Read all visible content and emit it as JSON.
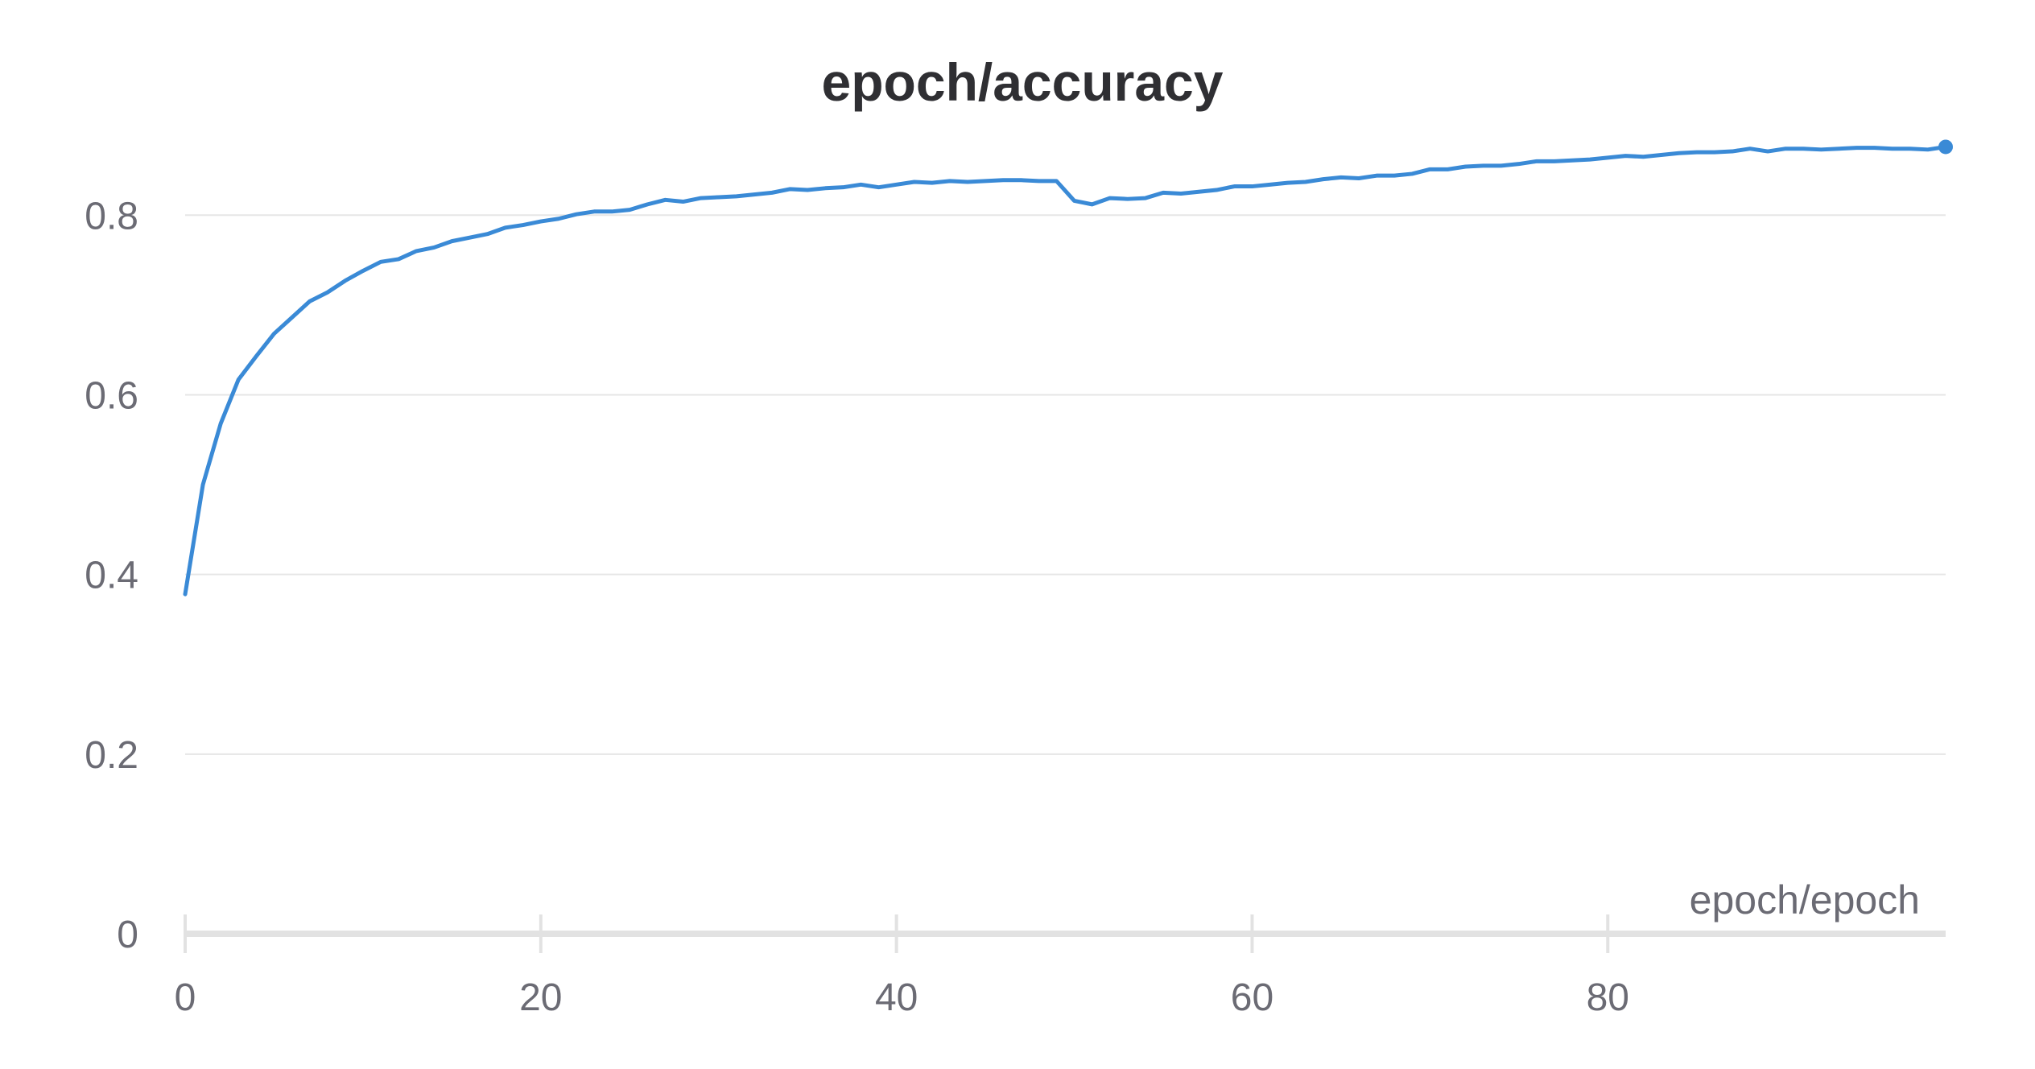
{
  "chart_data": {
    "type": "line",
    "title": "epoch/accuracy",
    "xlabel": "epoch/epoch",
    "ylabel": "",
    "xlim": [
      0,
      99
    ],
    "ylim": [
      0,
      0.88
    ],
    "x_ticks": [
      0,
      20,
      40,
      60,
      80
    ],
    "y_ticks": [
      0,
      0.2,
      0.4,
      0.6,
      0.8
    ],
    "x_tick_labels": [
      "0",
      "20",
      "40",
      "60",
      "80"
    ],
    "y_tick_labels": [
      "0",
      "0.2",
      "0.4",
      "0.6",
      "0.8"
    ],
    "grid": true,
    "legend": "none",
    "line_color": "#3a8ad6",
    "series": [
      {
        "x": [
          0,
          1,
          2,
          3,
          4,
          5,
          6,
          7,
          8,
          9,
          10,
          11,
          12,
          13,
          14,
          15,
          16,
          17,
          18,
          19,
          20,
          21,
          22,
          23,
          24,
          25,
          26,
          27,
          28,
          29,
          30,
          31,
          32,
          33,
          34,
          35,
          36,
          37,
          38,
          39,
          40,
          41,
          42,
          43,
          44,
          45,
          46,
          47,
          48,
          49,
          50,
          51,
          52,
          53,
          54,
          55,
          56,
          57,
          58,
          59,
          60,
          61,
          62,
          63,
          64,
          65,
          66,
          67,
          68,
          69,
          70,
          71,
          72,
          73,
          74,
          75,
          76,
          77,
          78,
          79,
          80,
          81,
          82,
          83,
          84,
          85,
          86,
          87,
          88,
          89,
          90,
          91,
          92,
          93,
          94,
          95,
          96,
          97,
          98,
          99
        ],
        "values": [
          0.378,
          0.5,
          0.568,
          0.617,
          0.643,
          0.668,
          0.686,
          0.704,
          0.714,
          0.727,
          0.738,
          0.748,
          0.751,
          0.76,
          0.764,
          0.771,
          0.775,
          0.779,
          0.786,
          0.789,
          0.793,
          0.796,
          0.801,
          0.804,
          0.804,
          0.806,
          0.812,
          0.817,
          0.815,
          0.819,
          0.82,
          0.821,
          0.823,
          0.825,
          0.829,
          0.828,
          0.83,
          0.831,
          0.834,
          0.831,
          0.834,
          0.837,
          0.836,
          0.838,
          0.837,
          0.838,
          0.839,
          0.839,
          0.838,
          0.838,
          0.816,
          0.812,
          0.819,
          0.818,
          0.819,
          0.825,
          0.824,
          0.826,
          0.828,
          0.832,
          0.832,
          0.834,
          0.836,
          0.837,
          0.84,
          0.842,
          0.841,
          0.844,
          0.844,
          0.846,
          0.851,
          0.851,
          0.854,
          0.855,
          0.855,
          0.857,
          0.86,
          0.86,
          0.861,
          0.862,
          0.864,
          0.866,
          0.865,
          0.867,
          0.869,
          0.87,
          0.87,
          0.871,
          0.874,
          0.871,
          0.874,
          0.874,
          0.873,
          0.874,
          0.875,
          0.875,
          0.874,
          0.874,
          0.873,
          0.876
        ]
      }
    ]
  }
}
